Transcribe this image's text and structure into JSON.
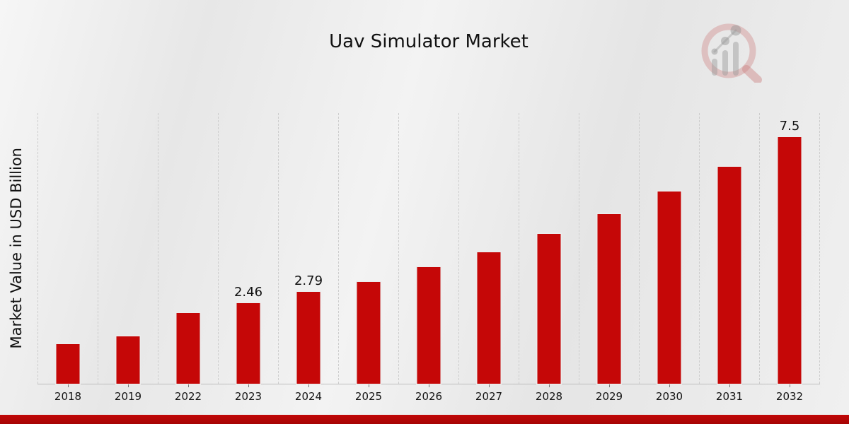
{
  "chart_data": {
    "type": "bar",
    "title": "Uav Simulator Market",
    "xlabel": "",
    "ylabel": "Market Value in USD Billion",
    "categories": [
      "2018",
      "2019",
      "2022",
      "2023",
      "2024",
      "2025",
      "2026",
      "2027",
      "2028",
      "2029",
      "2030",
      "2031",
      "2032"
    ],
    "values": [
      1.2,
      1.45,
      2.15,
      2.46,
      2.79,
      3.1,
      3.55,
      4.0,
      4.55,
      5.15,
      5.85,
      6.6,
      7.5
    ],
    "data_labels": [
      "",
      "",
      "",
      "2.46",
      "2.79",
      "",
      "",
      "",
      "",
      "",
      "",
      "",
      "7.5"
    ],
    "ylim": [
      0,
      7.5
    ],
    "grid": "vertical-dashed",
    "legend": "none",
    "bar_color": "#c50707"
  },
  "colors": {
    "accent_red": "#c50707",
    "banner_top": "#c10707",
    "banner_bottom": "#a60404",
    "gridline": "#cdcdcd",
    "text": "#111111"
  },
  "icons": {
    "watermark": "magnifier-bar-chart-logo"
  }
}
